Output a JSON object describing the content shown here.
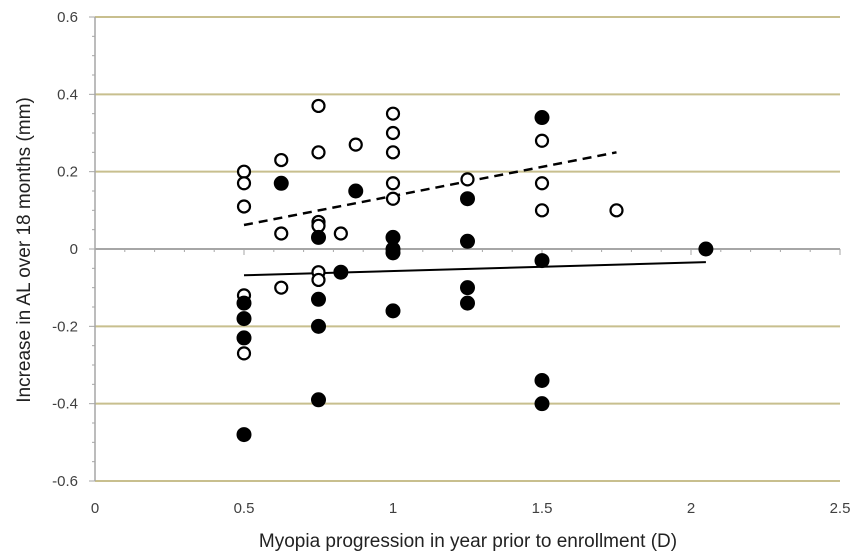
{
  "chart_data": {
    "type": "scatter",
    "title": "",
    "xlabel": "Myopia progression in year prior to enrollment (D)",
    "ylabel": "Increase in AL over 18 months (mm)",
    "xlim": [
      0,
      2.5
    ],
    "ylim": [
      -0.6,
      0.6
    ],
    "x_ticks": [
      0,
      0.5,
      1,
      1.5,
      2,
      2.5
    ],
    "x_tick_labels": [
      "0",
      "0.5",
      "1",
      "1.5",
      "2",
      "2.5"
    ],
    "y_ticks": [
      -0.6,
      -0.4,
      -0.2,
      0,
      0.2,
      0.4,
      0.6
    ],
    "y_tick_labels": [
      "-0.6",
      "-0.4",
      "-0.2",
      "0",
      "0.2",
      "0.4",
      "0.6"
    ],
    "grid": "horizontal",
    "colors": {
      "gridline": "#c8bf8e",
      "zero_line": "#a6a6a6",
      "axis": "#a6a6a6",
      "marker": "#000000",
      "text": "#404040"
    },
    "series": [
      {
        "marker": "open-circle",
        "points": [
          [
            0.5,
            0.2
          ],
          [
            0.5,
            0.17
          ],
          [
            0.5,
            0.11
          ],
          [
            0.5,
            -0.12
          ],
          [
            0.5,
            -0.27
          ],
          [
            0.625,
            0.23
          ],
          [
            0.625,
            0.04
          ],
          [
            0.625,
            -0.1
          ],
          [
            0.75,
            0.37
          ],
          [
            0.75,
            0.25
          ],
          [
            0.75,
            0.07
          ],
          [
            0.75,
            0.06
          ],
          [
            0.75,
            -0.06
          ],
          [
            0.75,
            -0.08
          ],
          [
            0.825,
            0.04
          ],
          [
            0.875,
            0.27
          ],
          [
            1.0,
            0.35
          ],
          [
            1.0,
            0.3
          ],
          [
            1.0,
            0.25
          ],
          [
            1.0,
            0.17
          ],
          [
            1.0,
            0.13
          ],
          [
            1.25,
            0.18
          ],
          [
            1.5,
            0.28
          ],
          [
            1.5,
            0.17
          ],
          [
            1.5,
            0.1
          ],
          [
            1.75,
            0.1
          ]
        ],
        "trendline": {
          "style": "dashed",
          "from": [
            0.5,
            0.062
          ],
          "to": [
            1.75,
            0.25
          ]
        }
      },
      {
        "marker": "filled-circle",
        "points": [
          [
            0.5,
            -0.14
          ],
          [
            0.5,
            -0.18
          ],
          [
            0.5,
            -0.23
          ],
          [
            0.5,
            -0.48
          ],
          [
            0.625,
            0.17
          ],
          [
            0.75,
            0.03
          ],
          [
            0.75,
            -0.13
          ],
          [
            0.75,
            -0.2
          ],
          [
            0.75,
            -0.39
          ],
          [
            0.825,
            -0.06
          ],
          [
            0.875,
            0.15
          ],
          [
            1.0,
            0.03
          ],
          [
            1.0,
            0.0
          ],
          [
            1.0,
            -0.01
          ],
          [
            1.0,
            -0.16
          ],
          [
            1.25,
            0.13
          ],
          [
            1.25,
            0.02
          ],
          [
            1.25,
            -0.1
          ],
          [
            1.25,
            -0.14
          ],
          [
            1.5,
            0.34
          ],
          [
            1.5,
            -0.03
          ],
          [
            1.5,
            -0.34
          ],
          [
            1.5,
            -0.4
          ],
          [
            2.05,
            0.0
          ]
        ],
        "trendline": {
          "style": "solid",
          "from": [
            0.5,
            -0.068
          ],
          "to": [
            2.05,
            -0.034
          ]
        }
      }
    ]
  }
}
